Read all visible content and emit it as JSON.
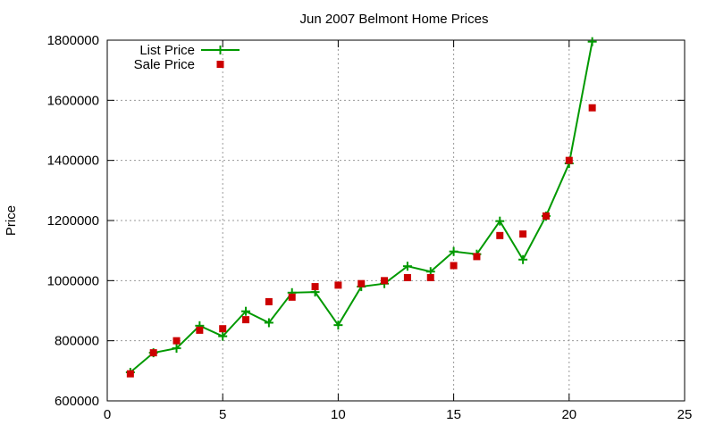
{
  "chart_data": {
    "type": "line",
    "title": "Jun 2007 Belmont Home Prices",
    "xlabel": "",
    "ylabel": "Price",
    "xlim": [
      0,
      25
    ],
    "ylim": [
      600000,
      1800000
    ],
    "xticks": [
      0,
      5,
      10,
      15,
      20,
      25
    ],
    "yticks": [
      600000,
      800000,
      1000000,
      1200000,
      1400000,
      1600000,
      1800000
    ],
    "grid": true,
    "legend_position": "top-left",
    "series": [
      {
        "name": "List Price",
        "style": "line-with-plus-markers",
        "color": "#009900",
        "x": [
          1,
          2,
          3,
          4,
          5,
          6,
          7,
          8,
          9,
          10,
          11,
          12,
          13,
          14,
          15,
          16,
          17,
          18,
          19,
          20,
          21
        ],
        "values": [
          695000,
          760000,
          775000,
          850000,
          815000,
          898000,
          860000,
          960000,
          962000,
          852000,
          980000,
          990000,
          1048000,
          1030000,
          1097000,
          1088000,
          1198000,
          1070000,
          1215000,
          1390000,
          1795000
        ]
      },
      {
        "name": "Sale Price",
        "style": "square-markers",
        "color": "#cc0000",
        "x": [
          1,
          2,
          3,
          4,
          5,
          6,
          7,
          8,
          9,
          10,
          11,
          12,
          13,
          14,
          15,
          16,
          17,
          18,
          19,
          20,
          21
        ],
        "values": [
          690000,
          760000,
          800000,
          835000,
          840000,
          870000,
          930000,
          945000,
          980000,
          985000,
          990000,
          1000000,
          1010000,
          1010000,
          1050000,
          1080000,
          1150000,
          1155000,
          1215000,
          1400000,
          1575000
        ]
      }
    ]
  }
}
